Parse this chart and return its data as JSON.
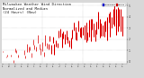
{
  "title1": "Milwaukee Weather Wind Direction",
  "title2": "Normalized and Median",
  "title3": "(24 Hours) (New)",
  "title_fontsize": 2.8,
  "bg_color": "#d8d8d8",
  "plot_bg_color": "#ffffff",
  "bar_color": "#dd0000",
  "legend_colors": [
    "#0000cc",
    "#cc0000"
  ],
  "legend_labels": [
    "Normalized",
    "Median"
  ],
  "ytick_labels": [
    "0",
    "1",
    "2",
    "3",
    "4",
    "5"
  ],
  "ytick_vals": [
    0,
    1,
    2,
    3,
    4,
    5
  ],
  "ylim": [
    -0.2,
    5.3
  ],
  "xlim": [
    -1,
    82
  ],
  "n_points": 80,
  "seed": 7,
  "grid_color": "#aaaaaa",
  "spine_color": "#888888"
}
